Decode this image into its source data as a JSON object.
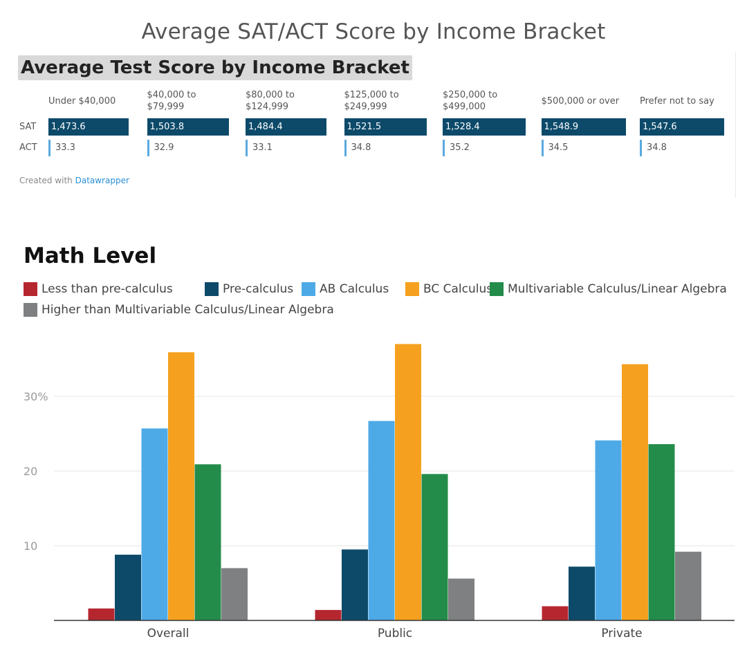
{
  "page_title": "Average SAT/ACT Score by Income Bracket",
  "datawrapper": {
    "title": "Average Test Score by Income Bracket",
    "row_labels": {
      "sat": "SAT",
      "act": "ACT"
    },
    "credit_prefix": "Created with",
    "credit_brand": "Datawrapper",
    "colors": {
      "sat": "#0d4a6a",
      "act": "#5aa9e0"
    },
    "sat_max": 1548.9,
    "brackets": [
      {
        "label": "Under $40,000",
        "sat": 1473.6,
        "sat_text": "1,473.6",
        "act": 33.3,
        "act_text": "33.3"
      },
      {
        "label": "$40,000 to $79,999",
        "sat": 1503.8,
        "sat_text": "1,503.8",
        "act": 32.9,
        "act_text": "32.9"
      },
      {
        "label": "$80,000 to $124,999",
        "sat": 1484.4,
        "sat_text": "1,484.4",
        "act": 33.1,
        "act_text": "33.1"
      },
      {
        "label": "$125,000 to $249,999",
        "sat": 1521.5,
        "sat_text": "1,521.5",
        "act": 34.8,
        "act_text": "34.8"
      },
      {
        "label": "$250,000 to $499,000",
        "sat": 1528.4,
        "sat_text": "1,528.4",
        "act": 35.2,
        "act_text": "35.2"
      },
      {
        "label": "$500,000 or over",
        "sat": 1548.9,
        "sat_text": "1,548.9",
        "act": 34.5,
        "act_text": "34.5"
      },
      {
        "label": "Prefer not to say",
        "sat": 1547.6,
        "sat_text": "1,547.6",
        "act": 34.8,
        "act_text": "34.8"
      }
    ]
  },
  "chart_data": {
    "type": "bar",
    "title": "Math Level",
    "xlabel": "",
    "ylabel": "",
    "categories": [
      "Overall",
      "Public",
      "Private"
    ],
    "ylim": [
      0,
      37
    ],
    "yticks": [
      10,
      20,
      30
    ],
    "ytick_labels": [
      "10",
      "20",
      "30%"
    ],
    "grid": true,
    "legend_position": "top-left",
    "series": [
      {
        "name": "Less than pre-calculus",
        "color": "#b5262f",
        "values": [
          1.6,
          1.4,
          1.9
        ]
      },
      {
        "name": "Pre-calculus",
        "color": "#0d4a6a",
        "values": [
          8.8,
          9.5,
          7.2
        ]
      },
      {
        "name": "AB Calculus",
        "color": "#4eaae6",
        "values": [
          25.7,
          26.7,
          24.1
        ]
      },
      {
        "name": "BC Calculus",
        "color": "#f5a11f",
        "values": [
          35.9,
          37.0,
          34.3
        ]
      },
      {
        "name": "Multivariable Calculus/Linear Algebra",
        "color": "#238c4a",
        "values": [
          20.9,
          19.6,
          23.6
        ]
      },
      {
        "name": "Higher than Multivariable Calculus/Linear Algebra",
        "color": "#7f8082",
        "values": [
          7.0,
          5.6,
          9.2
        ]
      }
    ]
  }
}
